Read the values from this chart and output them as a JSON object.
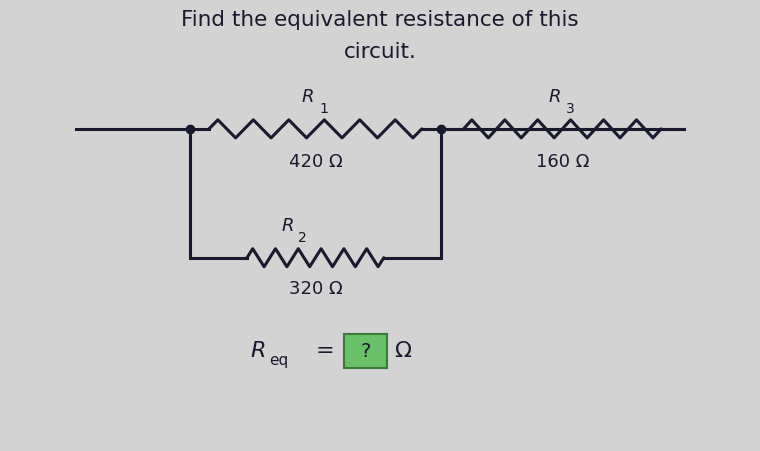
{
  "title_line1": "Find the equivalent resistance of this",
  "title_line2": "circuit.",
  "bg_color": "#d3d3d3",
  "text_color": "#1a1a2e",
  "R1_label": "R",
  "R1_sub": "1",
  "R1_value": "420 Ω",
  "R2_label": "R",
  "R2_sub": "2",
  "R2_value": "320 Ω",
  "R3_label": "R",
  "R3_sub": "3",
  "R3_value": "160 Ω",
  "req_label": "R",
  "req_sub": "eq",
  "req_box_color": "#6abf69",
  "req_box_border": "#3a7a3a",
  "req_text": "?",
  "omega": "Ω",
  "wire_color": "#1a1a2e",
  "wire_lw": 2.2,
  "dot_color": "#1a1a2e"
}
